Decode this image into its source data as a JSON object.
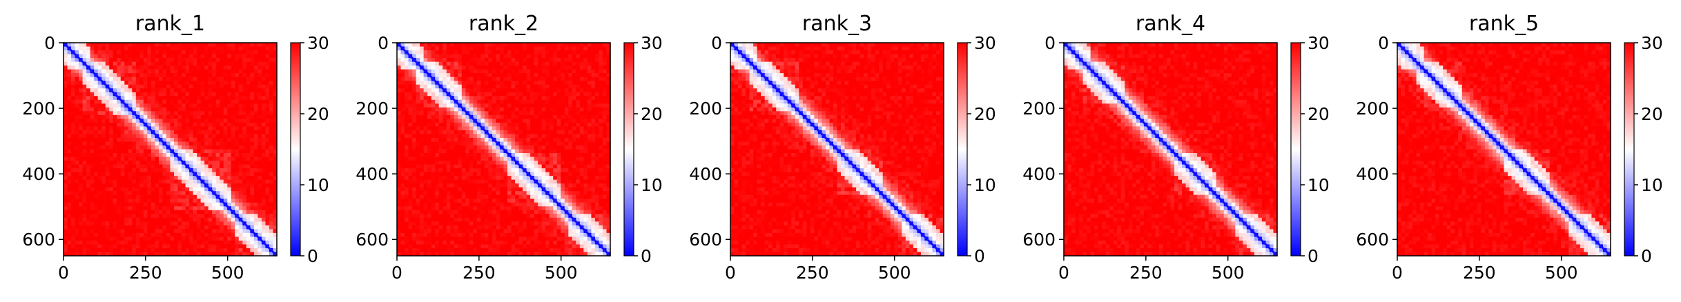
{
  "chart_data": [
    {
      "type": "heatmap",
      "title": "rank_1",
      "xlabel": "",
      "ylabel": "",
      "xlim": [
        0,
        650
      ],
      "ylim": [
        650,
        0
      ],
      "x_ticks": [
        "0",
        "250",
        "500"
      ],
      "y_ticks": [
        "0",
        "200",
        "400",
        "600"
      ],
      "x_tick_values": [
        0,
        250,
        500
      ],
      "y_tick_values": [
        0,
        200,
        400,
        600
      ],
      "colorbar": {
        "min": 0,
        "max": 30,
        "ticks": [
          "0",
          "10",
          "20",
          "30"
        ],
        "tick_values": [
          0,
          10,
          20,
          30
        ],
        "colormap": "bwr"
      },
      "diagonal_blocks": [
        [
          0,
          80
        ],
        [
          60,
          220
        ],
        [
          330,
          510
        ],
        [
          520,
          650
        ]
      ],
      "variant": 1
    },
    {
      "type": "heatmap",
      "title": "rank_2",
      "xlabel": "",
      "ylabel": "",
      "xlim": [
        0,
        650
      ],
      "ylim": [
        650,
        0
      ],
      "x_ticks": [
        "0",
        "250",
        "500"
      ],
      "y_ticks": [
        "0",
        "200",
        "400",
        "600"
      ],
      "x_tick_values": [
        0,
        250,
        500
      ],
      "y_tick_values": [
        0,
        200,
        400,
        600
      ],
      "colorbar": {
        "min": 0,
        "max": 30,
        "ticks": [
          "0",
          "10",
          "20",
          "30"
        ],
        "tick_values": [
          0,
          10,
          20,
          30
        ],
        "colormap": "bwr"
      },
      "diagonal_blocks": [
        [
          0,
          80
        ],
        [
          60,
          200
        ],
        [
          340,
          500
        ],
        [
          520,
          650
        ]
      ],
      "variant": 2
    },
    {
      "type": "heatmap",
      "title": "rank_3",
      "xlabel": "",
      "ylabel": "",
      "xlim": [
        0,
        650
      ],
      "ylim": [
        650,
        0
      ],
      "x_ticks": [
        "0",
        "250",
        "500"
      ],
      "y_ticks": [
        "0",
        "200",
        "400",
        "600"
      ],
      "x_tick_values": [
        0,
        250,
        500
      ],
      "y_tick_values": [
        0,
        200,
        400,
        600
      ],
      "colorbar": {
        "min": 0,
        "max": 30,
        "ticks": [
          "0",
          "10",
          "20",
          "30"
        ],
        "tick_values": [
          0,
          10,
          20,
          30
        ],
        "colormap": "bwr"
      },
      "diagonal_blocks": [
        [
          0,
          80
        ],
        [
          60,
          210
        ],
        [
          330,
          470
        ],
        [
          520,
          650
        ]
      ],
      "variant": 3
    },
    {
      "type": "heatmap",
      "title": "rank_4",
      "xlabel": "",
      "ylabel": "",
      "xlim": [
        0,
        650
      ],
      "ylim": [
        650,
        0
      ],
      "x_ticks": [
        "0",
        "250",
        "500"
      ],
      "y_ticks": [
        "0",
        "200",
        "400",
        "600"
      ],
      "x_tick_values": [
        0,
        250,
        500
      ],
      "y_tick_values": [
        0,
        200,
        400,
        600
      ],
      "colorbar": {
        "min": 0,
        "max": 30,
        "ticks": [
          "0",
          "10",
          "20",
          "30"
        ],
        "tick_values": [
          0,
          10,
          20,
          30
        ],
        "colormap": "bwr"
      },
      "diagonal_blocks": [
        [
          0,
          80
        ],
        [
          60,
          180
        ],
        [
          340,
          470
        ],
        [
          520,
          650
        ]
      ],
      "variant": 4
    },
    {
      "type": "heatmap",
      "title": "rank_5",
      "xlabel": "",
      "ylabel": "",
      "xlim": [
        0,
        650
      ],
      "ylim": [
        650,
        0
      ],
      "x_ticks": [
        "0",
        "250",
        "500"
      ],
      "y_ticks": [
        "0",
        "200",
        "400",
        "600"
      ],
      "x_tick_values": [
        0,
        250,
        500
      ],
      "y_tick_values": [
        0,
        200,
        400,
        600
      ],
      "colorbar": {
        "min": 0,
        "max": 30,
        "ticks": [
          "0",
          "10",
          "20",
          "30"
        ],
        "tick_values": [
          0,
          10,
          20,
          30
        ],
        "colormap": "bwr"
      },
      "diagonal_blocks": [
        [
          0,
          80
        ],
        [
          60,
          200
        ],
        [
          330,
          470
        ],
        [
          520,
          650
        ]
      ],
      "variant": 5
    }
  ]
}
